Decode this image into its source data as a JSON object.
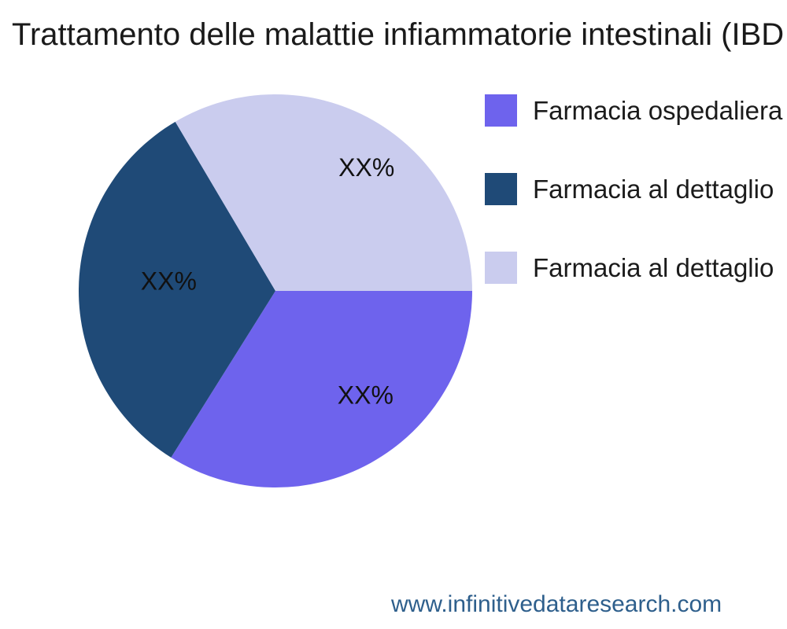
{
  "title": "Trattamento delle malattie infiammatorie intestinali (IBD",
  "watermark": "www.infinitivedataresearch.com",
  "chart_data": {
    "type": "pie",
    "title": "Trattamento delle malattie infiammatorie intestinali (IBD",
    "slices": [
      {
        "label": "Farmacia ospedaliera",
        "display_value": "XX%",
        "value": 33.9,
        "color": "#6e63ed"
      },
      {
        "label": "Farmacia al dettaglio",
        "display_value": "XX%",
        "value": 32.6,
        "color": "#1f4a77"
      },
      {
        "label": "Farmacia al dettaglio",
        "display_value": "XX%",
        "value": 33.5,
        "color": "#caccee"
      }
    ],
    "start_angle_deg": 0,
    "direction": "clockwise",
    "legend_position": "right",
    "label_color": "#111111"
  }
}
